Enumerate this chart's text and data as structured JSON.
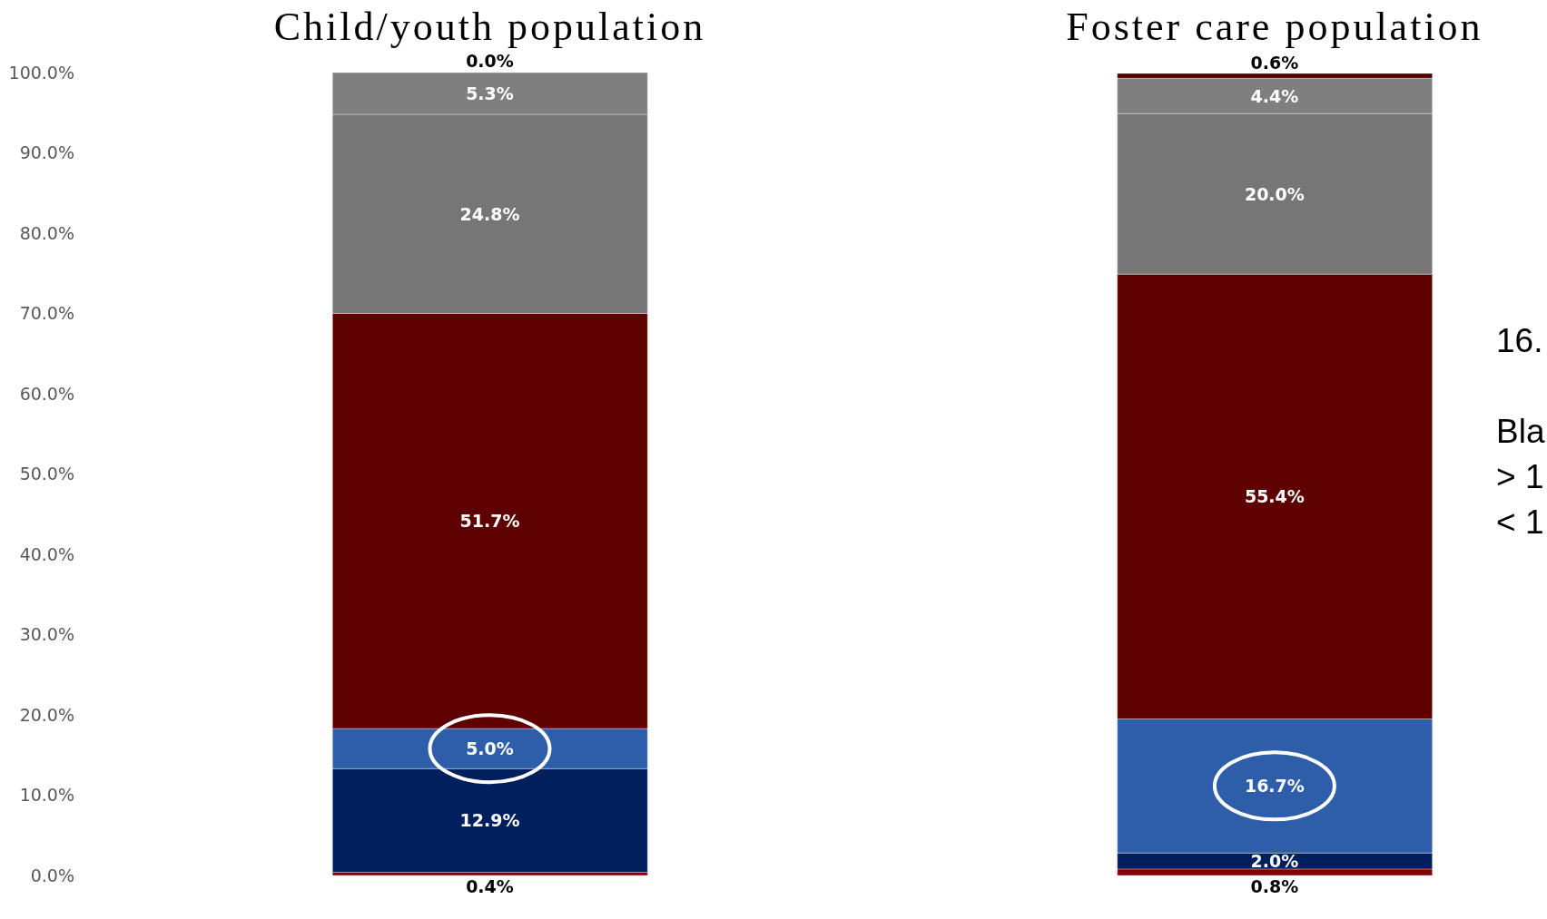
{
  "chart_data": {
    "type": "bar",
    "stacked": true,
    "categories": [
      "Child/youth population",
      "Foster care population"
    ],
    "ylim": [
      0,
      100
    ],
    "yticks": [
      {
        "value": 0,
        "label": "0.0%"
      },
      {
        "value": 10,
        "label": "10.0%"
      },
      {
        "value": 20,
        "label": "20.0%"
      },
      {
        "value": 30,
        "label": "30.0%"
      },
      {
        "value": 40,
        "label": "40.0%"
      },
      {
        "value": 50,
        "label": "50.0%"
      },
      {
        "value": 60,
        "label": "60.0%"
      },
      {
        "value": 70,
        "label": "70.0%"
      },
      {
        "value": 80,
        "label": "80.0%"
      },
      {
        "value": 90,
        "label": "90.0%"
      },
      {
        "value": 100,
        "label": "100.0%"
      }
    ],
    "series": [
      {
        "color": "#800000",
        "values": [
          0.4,
          0.8
        ],
        "value_labels": [
          "0.4%",
          "0.8%"
        ]
      },
      {
        "color": "#001f5c",
        "values": [
          12.9,
          2.0
        ],
        "value_labels": [
          "12.9%",
          "2.0%"
        ]
      },
      {
        "color": "#2e5eaa",
        "values": [
          5.0,
          16.7
        ],
        "value_labels": [
          "5.0%",
          "16.7%"
        ]
      },
      {
        "color": "#5e0000",
        "values": [
          51.7,
          55.4
        ],
        "value_labels": [
          "51.7%",
          "55.4%"
        ]
      },
      {
        "color": "#767676",
        "values": [
          24.8,
          20.0
        ],
        "value_labels": [
          "24.8%",
          "20.0%"
        ]
      },
      {
        "color": "#7f7f7f",
        "values": [
          5.3,
          4.4
        ],
        "value_labels": [
          "5.3%",
          "4.4%"
        ]
      },
      {
        "color": "#4f0000",
        "values": [
          0.0,
          0.6
        ],
        "value_labels": [
          "0.0%",
          "0.6%"
        ]
      }
    ],
    "annotations": [
      "16.",
      "Bla",
      "> 1",
      "< 1"
    ]
  }
}
